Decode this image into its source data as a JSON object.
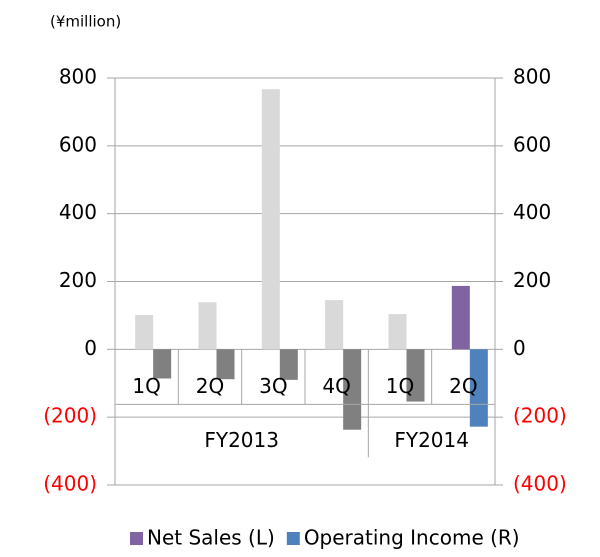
{
  "chart_data": {
    "type": "bar",
    "unit_label": "(¥million)",
    "categories": [
      "1Q",
      "2Q",
      "3Q",
      "4Q",
      "1Q",
      "2Q"
    ],
    "groups": [
      {
        "label": "FY2013",
        "span": 4
      },
      {
        "label": "FY2014",
        "span": 2
      }
    ],
    "series": [
      {
        "name": "Net Sales (L)",
        "color": "#8064a2",
        "values": [
          101,
          139,
          767,
          145,
          104,
          187
        ],
        "colors": [
          "#d9d9d9",
          "#d9d9d9",
          "#d9d9d9",
          "#d9d9d9",
          "#d9d9d9",
          "#8064a2"
        ]
      },
      {
        "name": "Operating Income (R)",
        "color": "#4f81bd",
        "axis": "y2",
        "values": [
          -86,
          -88,
          -90,
          -237,
          -154,
          -228
        ],
        "colors": [
          "#808080",
          "#808080",
          "#808080",
          "#808080",
          "#808080",
          "#4f81bd"
        ]
      }
    ],
    "ylim": [
      -400,
      800
    ],
    "yticks": [
      {
        "value": -400,
        "label": "(400)"
      },
      {
        "value": -200,
        "label": "(200)"
      },
      0,
      200,
      400,
      600,
      800
    ],
    "y2lim": [
      -400,
      800
    ],
    "y2ticks": [
      {
        "value": -400,
        "label": "(400)"
      },
      {
        "value": -200,
        "label": "(200)"
      },
      0,
      200,
      400,
      600,
      800
    ],
    "negative_tick_color": "#ff0000",
    "grid": true,
    "legend": "bottom"
  }
}
